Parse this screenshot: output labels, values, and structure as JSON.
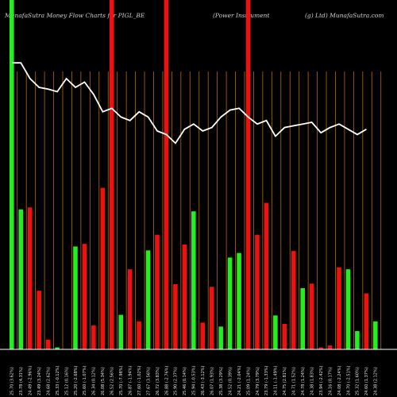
{
  "title": {
    "left": "MunafaSutra  Money Flow  Charts for PIGL_BE",
    "middle": "(Power Instrument",
    "right": "(g) Ltd) MunafaSutra.com"
  },
  "colors": {
    "background": "#000000",
    "up_bar": "#22ee22",
    "down_bar": "#ee1111",
    "grid_line": "#b86a00",
    "line": "#ffffff",
    "axis": "#ffffff"
  },
  "chart_data": {
    "type": "bar",
    "title": "MunafaSutra  Money Flow  Charts for PIGL_BE (Power Instrument (g) Ltd) MunafaSutra.com",
    "grid": true,
    "bars": [
      {
        "label": "25.70 (3.62%)",
        "value": 100,
        "direction": "up",
        "full": true
      },
      {
        "label": "23.78 (4.31%)",
        "value": 215,
        "direction": "up"
      },
      {
        "label": "24.49 (-2.96%)",
        "value": 218,
        "direction": "down"
      },
      {
        "label": "23.49 (3.24%)",
        "value": 90,
        "direction": "down"
      },
      {
        "label": "24.68 (2.62%)",
        "value": 15,
        "direction": "down"
      },
      {
        "label": "25.33 (-0.12%)",
        "value": 3,
        "direction": "up"
      },
      {
        "label": "25.12 (0.16%)",
        "value": 0,
        "direction": "up"
      },
      {
        "label": "25.20 (-2.68%)",
        "value": 158,
        "direction": "up"
      },
      {
        "label": "25.60 (-1.07%)",
        "value": 162,
        "direction": "down"
      },
      {
        "label": "26.34 (0.12%)",
        "value": 37,
        "direction": "down"
      },
      {
        "label": "26.08 (5.34%)",
        "value": 248,
        "direction": "down"
      },
      {
        "label": "26.52 (2.56%)",
        "value": 100,
        "direction": "down",
        "full": true
      },
      {
        "label": "25.70 (-7.98%)",
        "value": 53,
        "direction": "up"
      },
      {
        "label": "26.87 (-1.94%)",
        "value": 123,
        "direction": "down"
      },
      {
        "label": "27.60 (-1.02%)",
        "value": 43,
        "direction": "down"
      },
      {
        "label": "27.67 (3.56%)",
        "value": 152,
        "direction": "up"
      },
      {
        "label": "26.72 (3.83%)",
        "value": 176,
        "direction": "down"
      },
      {
        "label": "26.88 (-2.76%)",
        "value": 100,
        "direction": "down",
        "full": true
      },
      {
        "label": "25.90 (2.37%)",
        "value": 100,
        "direction": "down"
      },
      {
        "label": "25.46 (0.14%)",
        "value": 161,
        "direction": "down"
      },
      {
        "label": "25.94 (-0.53%)",
        "value": 212,
        "direction": "up"
      },
      {
        "label": "26.43 (-3.12%)",
        "value": 41,
        "direction": "down"
      },
      {
        "label": "26.07 (1.93%)",
        "value": 96,
        "direction": "down"
      },
      {
        "label": "25.38 (3.29%)",
        "value": 35,
        "direction": "up"
      },
      {
        "label": "24.52 (0.39%)",
        "value": 141,
        "direction": "up"
      },
      {
        "label": "24.21 (-2.04%)",
        "value": 148,
        "direction": "up"
      },
      {
        "label": "25.09 (1.24%)",
        "value": 100,
        "direction": "down",
        "full": true
      },
      {
        "label": "24.79 (3.79%)",
        "value": 176,
        "direction": "down"
      },
      {
        "label": "23.79 (-1.33%)",
        "value": 225,
        "direction": "down"
      },
      {
        "label": "24.11 (-1.49%)",
        "value": 52,
        "direction": "up"
      },
      {
        "label": "24.75 (2.81%)",
        "value": 39,
        "direction": "down"
      },
      {
        "label": "24.71 (1.52%)",
        "value": 151,
        "direction": "down"
      },
      {
        "label": "24.78 (1.24%)",
        "value": 94,
        "direction": "up"
      },
      {
        "label": "24.38 (1.83%)",
        "value": 101,
        "direction": "down"
      },
      {
        "label": "23.94 (-2.42%)",
        "value": 3,
        "direction": "down"
      },
      {
        "label": "24.16 (0.17%)",
        "value": 6,
        "direction": "down"
      },
      {
        "label": "24.08 (-2.24%)",
        "value": 126,
        "direction": "down"
      },
      {
        "label": "24.70 (-2.51%)",
        "value": 123,
        "direction": "up"
      },
      {
        "label": "25.32 (1.60%)",
        "value": 28,
        "direction": "up"
      },
      {
        "label": "24.60 (1.37%)",
        "value": 86,
        "direction": "down"
      },
      {
        "label": "24.38 (2.12%)",
        "value": 43,
        "direction": "up"
      }
    ],
    "line": [
      328,
      328,
      310,
      300,
      298,
      295,
      310,
      300,
      306,
      292,
      272,
      276,
      266,
      262,
      272,
      266,
      250,
      246,
      236,
      252,
      258,
      250,
      254,
      266,
      274,
      276,
      266,
      258,
      262,
      244,
      254,
      256,
      258,
      260,
      248,
      254,
      258,
      252,
      246,
      252
    ],
    "line_range": [
      0,
      400
    ]
  }
}
